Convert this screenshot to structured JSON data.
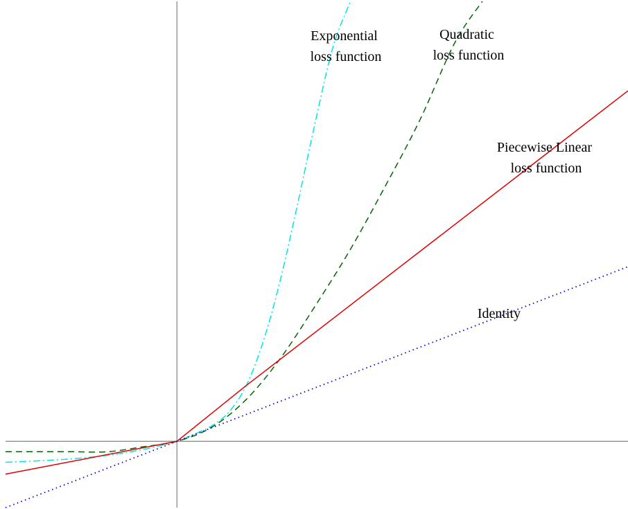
{
  "chart_data": {
    "type": "line",
    "title": "",
    "xlabel": "",
    "ylabel": "",
    "grid": false,
    "legend": "none",
    "axes": {
      "show_x_axis": true,
      "show_y_axis": true,
      "tick_labels": false
    },
    "xlim": [
      -2.47,
      6.5
    ],
    "ylim": [
      -0.95,
      6.3
    ],
    "series": [
      {
        "key": "exponential",
        "label_lines": [
          "Exponential",
          "loss function"
        ],
        "color": "#00e5e5",
        "dash": "dash-dot",
        "x": [
          -2.47,
          -2.0,
          -1.5,
          -1.0,
          -0.5,
          0.0,
          0.25,
          0.5,
          0.75,
          1.0,
          1.25,
          1.5,
          1.75,
          2.0,
          2.25,
          2.5
        ],
        "y": [
          -0.3,
          -0.28,
          -0.25,
          -0.2,
          -0.12,
          0.0,
          0.1,
          0.22,
          0.42,
          0.8,
          1.45,
          2.35,
          3.45,
          4.6,
          5.65,
          6.3
        ]
      },
      {
        "key": "quadratic",
        "label_lines": [
          "Quadratic",
          "loss function"
        ],
        "color": "#006400",
        "dash": "dashed",
        "x": [
          -2.47,
          -2.0,
          -1.5,
          -1.0,
          -0.5,
          0.0,
          0.5,
          1.0,
          1.5,
          2.0,
          2.5,
          3.0,
          3.5,
          4.0,
          4.4
        ],
        "y": [
          -0.15,
          -0.15,
          -0.15,
          -0.15,
          -0.08,
          0.0,
          0.2,
          0.6,
          1.2,
          1.95,
          2.75,
          3.65,
          4.6,
          5.7,
          6.3
        ]
      },
      {
        "key": "piecewise_linear",
        "label_lines": [
          "Piecewise Linear",
          "loss function"
        ],
        "color": "#e00000",
        "dash": "solid",
        "x": [
          -2.47,
          0.0,
          1.0,
          6.5
        ],
        "y": [
          -0.47,
          0.0,
          0.8,
          5.02
        ]
      },
      {
        "key": "identity",
        "label_lines": [
          "Identity"
        ],
        "color": "#0000cc",
        "dash": "dotted",
        "x": [
          -2.47,
          6.5
        ],
        "y": [
          -0.95,
          2.5
        ]
      }
    ]
  }
}
